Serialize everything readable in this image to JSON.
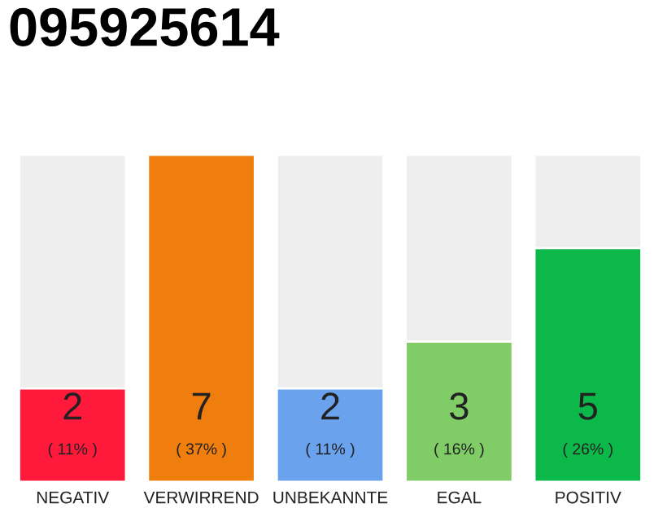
{
  "chart_data": {
    "type": "bar",
    "title": "095925614",
    "categories": [
      "NEGATIV",
      "VERWIRREND",
      "UNBEKANNTE",
      "EGAL",
      "POSITIV"
    ],
    "values": [
      2,
      7,
      2,
      3,
      5
    ],
    "colors": [
      "#ff1a3c",
      "#f07e0e",
      "#6aa2ee",
      "#80cc66",
      "#0db84a"
    ],
    "value_labels": [
      "2\n( 11% )",
      "7\n( 37% )",
      "2\n( 11% )",
      "3\n( 16% )",
      "5\n( 26% )"
    ],
    "ylim": [
      0,
      7
    ],
    "tick_labels": "x"
  }
}
